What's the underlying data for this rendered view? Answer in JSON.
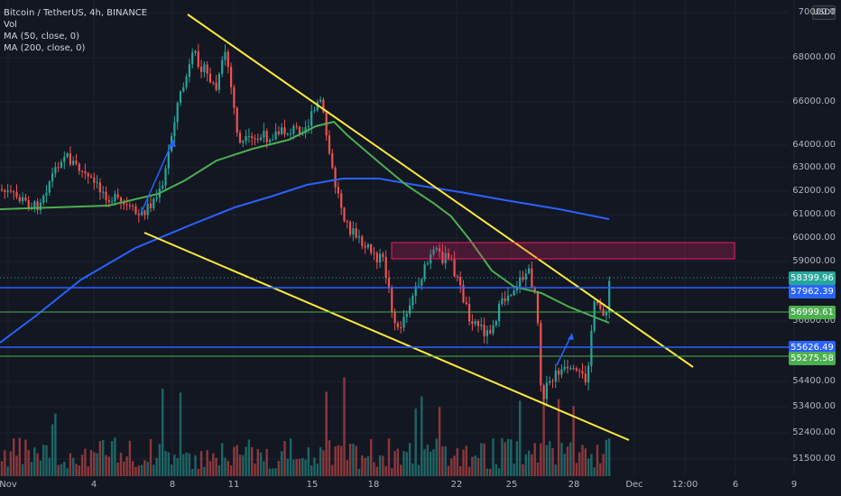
{
  "legend": {
    "title": "Bitcoin / TetherUS, 4h, BINANCE",
    "vol": "Vol",
    "ma50": "MA (50, close, 0)",
    "ma200": "MA (200, close, 0)"
  },
  "currency": "USDT",
  "y_ticks": [
    "70000.0",
    "68000.00",
    "66000.00",
    "64000.00",
    "63000.00",
    "62000.00",
    "61000.00",
    "60000.00",
    "59000.00",
    "56600.00",
    "54400.00",
    "53400.00",
    "52400.00",
    "51500.00"
  ],
  "x_ticks": [
    "Nov",
    "4",
    "8",
    "11",
    "15",
    "18",
    "22",
    "25",
    "28",
    "Dec",
    "12:00",
    "6",
    "9"
  ],
  "price_labels": [
    {
      "text": "58399.96",
      "color": "#26a69a"
    },
    {
      "text": "57962.39",
      "color": "#2962ff"
    },
    {
      "text": "56999.61",
      "color": "#4caf50"
    },
    {
      "text": "55626.49",
      "color": "#2962ff"
    },
    {
      "text": "55275.58",
      "color": "#4caf50"
    }
  ],
  "colors": {
    "up": "#26a69a",
    "down": "#ef5350",
    "ma50": "#4caf50",
    "ma200": "#2962ff",
    "trendline": "#ffeb3b",
    "zone": "#e91e63"
  },
  "chart_data": {
    "type": "candlestick",
    "symbol": "Bitcoin / TetherUS",
    "timeframe": "4h",
    "exchange": "BINANCE",
    "indicators": [
      "Vol",
      "MA (50, close, 0)",
      "MA (200, close, 0)"
    ],
    "last_price": 58399.96,
    "horizontal_levels": [
      57962.39,
      56999.61,
      55626.49,
      55275.58
    ],
    "resistance_zone": [
      59300,
      59900
    ]
  }
}
